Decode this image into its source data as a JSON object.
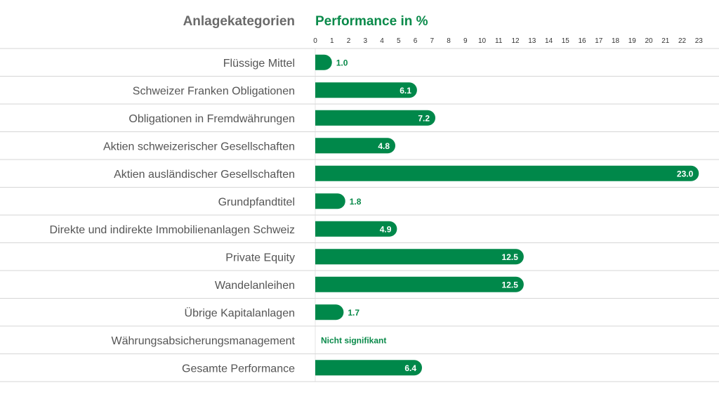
{
  "header": {
    "category_title": "Anlagekategorien",
    "performance_title": "Performance in %"
  },
  "colors": {
    "bar": "#00884a",
    "label_outside": "#0a8a4a",
    "row_line": "#d6d6d6",
    "category_text": "#555555"
  },
  "chart_data": {
    "type": "bar",
    "orientation": "horizontal",
    "title": "Performance in %",
    "category_axis_title": "Anlagekategorien",
    "xlim": [
      0,
      23
    ],
    "x_ticks": [
      0,
      1,
      2,
      3,
      4,
      5,
      6,
      7,
      8,
      9,
      10,
      11,
      12,
      13,
      14,
      15,
      16,
      17,
      18,
      19,
      20,
      21,
      22,
      23
    ],
    "categories": [
      "Flüssige Mittel",
      "Schweizer Franken Obligationen",
      "Obligationen in Fremdwährungen",
      "Aktien schweizerischer Gesellschaften",
      "Aktien ausländischer Gesellschaften",
      "Grundpfandtitel",
      "Direkte und indirekte Immobilienanlagen Schweiz",
      "Private Equity",
      "Wandelanleihen",
      "Übrige Kapitalanlagen",
      "Währungsabsicherungsmanagement",
      "Gesamte Performance"
    ],
    "values": [
      1.0,
      6.1,
      7.2,
      4.8,
      23.0,
      1.8,
      4.9,
      12.5,
      12.5,
      1.7,
      null,
      6.4
    ],
    "labels": [
      "1.0",
      "6.1",
      "7.2",
      "4.8",
      "23.0",
      "1.8",
      "4.9",
      "12.5",
      "12.5",
      "1.7",
      "Nicht signifikant",
      "6.4"
    ]
  }
}
